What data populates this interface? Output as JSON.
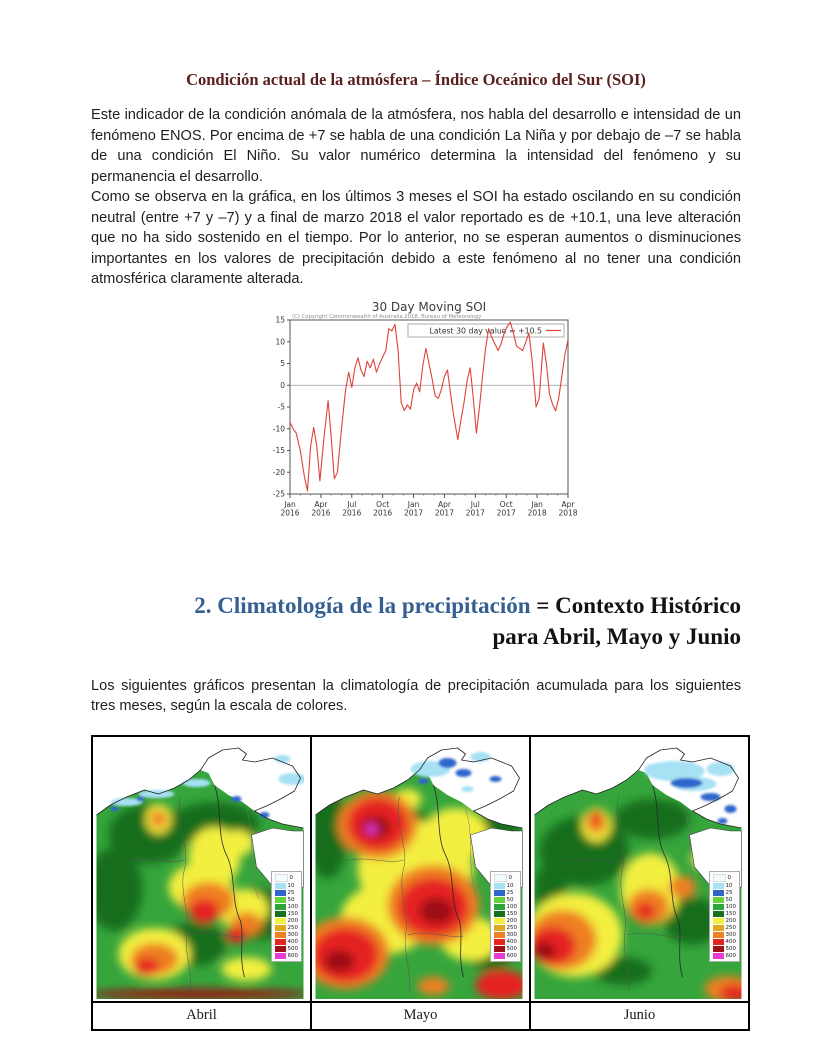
{
  "document": {
    "title": "Condición actual de la atmósfera – Índice Oceánico del Sur (SOI)",
    "title_color": "#5a1f1f",
    "paragraph1": "Este indicador de la condición anómala de la atmósfera, nos habla del desarrollo e intensidad de un fenómeno ENOS. Por encima de +7 se habla de una condición La Niña y por debajo de –7 se habla de una condición El Niño. Su valor numérico determina la intensidad del fenómeno y su permanencia el desarrollo.",
    "paragraph2": "Como se observa en la gráfica, en los últimos 3 meses el SOI ha estado oscilando en su condición neutral (entre +7 y –7) y a final de marzo 2018 el valor reportado es de +10.1, una leve alteración que no ha sido sostenido en el tiempo.  Por lo anterior, no se esperan aumentos o disminuciones importantes en los valores de precipitación debido a este fenómeno al no tener una condición atmosférica claramente alterada.",
    "heading2": {
      "part_blue": "2. Climatología de la precipitación ",
      "part_black": "= Contexto Histórico",
      "line2": "para Abril, Mayo y Junio",
      "blue_color": "#365f91"
    },
    "paragraph3": "Los siguientes gráficos presentan la climatología de precipitación acumulada para los siguientes tres meses, según la escala de colores."
  },
  "chart_data": {
    "type": "line",
    "title": "30 Day Moving SOI",
    "copyright": "(C) Copyright Commonwealth of Australia 2018, Bureau of Meteorology",
    "legend_label": "Latest 30 day value = +10.5",
    "line_color": "#e0423b",
    "ylim": [
      -25,
      15
    ],
    "y_ticks": [
      15,
      10,
      5,
      0,
      -5,
      -10,
      -15,
      -20,
      -25
    ],
    "x_range_months": [
      0,
      27
    ],
    "x_ticks": [
      {
        "month": "Jan",
        "year": "2016",
        "m": 0
      },
      {
        "month": "Apr",
        "year": "2016",
        "m": 3
      },
      {
        "month": "Jul",
        "year": "2016",
        "m": 6
      },
      {
        "month": "Oct",
        "year": "2016",
        "m": 9
      },
      {
        "month": "Jan",
        "year": "2017",
        "m": 12
      },
      {
        "month": "Apr",
        "year": "2017",
        "m": 15
      },
      {
        "month": "Jul",
        "year": "2017",
        "m": 18
      },
      {
        "month": "Oct",
        "year": "2017",
        "m": 21
      },
      {
        "month": "Jan",
        "year": "2018",
        "m": 24
      },
      {
        "month": "Apr",
        "year": "2018",
        "m": 27
      }
    ],
    "series": [
      {
        "name": "30 Day Moving SOI",
        "points": [
          [
            0,
            -8.5
          ],
          [
            0.3,
            -10
          ],
          [
            0.6,
            -11
          ],
          [
            1.0,
            -15
          ],
          [
            1.4,
            -21
          ],
          [
            1.7,
            -24.3
          ],
          [
            2.0,
            -14
          ],
          [
            2.3,
            -9.7
          ],
          [
            2.6,
            -14
          ],
          [
            2.9,
            -22
          ],
          [
            3.3,
            -12
          ],
          [
            3.7,
            -3.5
          ],
          [
            4.0,
            -12
          ],
          [
            4.3,
            -21.5
          ],
          [
            4.6,
            -20
          ],
          [
            5.0,
            -10
          ],
          [
            5.4,
            -1
          ],
          [
            5.7,
            3
          ],
          [
            6.0,
            -0.5
          ],
          [
            6.3,
            4
          ],
          [
            6.6,
            6.3
          ],
          [
            6.9,
            3.5
          ],
          [
            7.2,
            2
          ],
          [
            7.5,
            5.5
          ],
          [
            7.8,
            4
          ],
          [
            8.1,
            6
          ],
          [
            8.4,
            3
          ],
          [
            8.7,
            5
          ],
          [
            9.0,
            6.5
          ],
          [
            9.3,
            8
          ],
          [
            9.6,
            13
          ],
          [
            9.9,
            12.5
          ],
          [
            10.2,
            14
          ],
          [
            10.5,
            8
          ],
          [
            10.8,
            -4
          ],
          [
            11.1,
            -5.8
          ],
          [
            11.4,
            -4.5
          ],
          [
            11.7,
            -5.5
          ],
          [
            12.0,
            -1
          ],
          [
            12.3,
            0.5
          ],
          [
            12.6,
            -1.5
          ],
          [
            12.9,
            4.5
          ],
          [
            13.2,
            8.5
          ],
          [
            13.5,
            5
          ],
          [
            13.8,
            1.5
          ],
          [
            14.1,
            -2.5
          ],
          [
            14.4,
            -3
          ],
          [
            14.7,
            -1
          ],
          [
            15.0,
            2
          ],
          [
            15.3,
            3.5
          ],
          [
            15.6,
            -2
          ],
          [
            15.9,
            -7
          ],
          [
            16.3,
            -12.5
          ],
          [
            16.6,
            -8
          ],
          [
            16.9,
            -4
          ],
          [
            17.2,
            1
          ],
          [
            17.5,
            4
          ],
          [
            17.8,
            -3
          ],
          [
            18.1,
            -11
          ],
          [
            18.4,
            -5
          ],
          [
            18.7,
            2
          ],
          [
            19.0,
            8.5
          ],
          [
            19.3,
            13
          ],
          [
            19.6,
            11
          ],
          [
            19.9,
            9.5
          ],
          [
            20.2,
            8
          ],
          [
            20.5,
            9.5
          ],
          [
            20.8,
            12
          ],
          [
            21.1,
            13.5
          ],
          [
            21.4,
            14.5
          ],
          [
            21.7,
            12
          ],
          [
            22.0,
            9
          ],
          [
            22.3,
            8.5
          ],
          [
            22.6,
            8
          ],
          [
            22.9,
            10
          ],
          [
            23.2,
            12
          ],
          [
            23.5,
            6
          ],
          [
            23.9,
            -5
          ],
          [
            24.2,
            -3
          ],
          [
            24.6,
            9.7
          ],
          [
            24.9,
            5
          ],
          [
            25.2,
            -2
          ],
          [
            25.5,
            -4.4
          ],
          [
            25.8,
            -5.9
          ],
          [
            26.1,
            -3
          ],
          [
            26.4,
            2
          ],
          [
            26.7,
            7
          ],
          [
            27,
            10.5
          ]
        ]
      }
    ]
  },
  "maps": {
    "legend_values": [
      "0",
      "10",
      "25",
      "50",
      "100",
      "150",
      "200",
      "250",
      "300",
      "400",
      "500",
      "600"
    ],
    "legend_colors": {
      "0": "#f2fbfd",
      "10": "#a6e1f4",
      "25": "#2f66cc",
      "50": "#63d43c",
      "100": "#2fa437",
      "150": "#176e1c",
      "200": "#f3ef3f",
      "250": "#dfa821",
      "300": "#ee7f23",
      "400": "#e52420",
      "500": "#9c1016",
      "600": "#e93ad3"
    },
    "land_color": "#36a53c",
    "months": [
      {
        "caption": "Abril",
        "blobs": [
          [
            52,
            95,
            40,
            30,
            "150"
          ],
          [
            18,
            150,
            28,
            42,
            "150"
          ],
          [
            118,
            85,
            45,
            22,
            "150"
          ],
          [
            162,
            175,
            32,
            26,
            "150"
          ],
          [
            98,
            205,
            32,
            22,
            "150"
          ],
          [
            140,
            104,
            18,
            13,
            "200"
          ],
          [
            62,
            80,
            13,
            15,
            "200"
          ],
          [
            62,
            80,
            8,
            9,
            "300"
          ],
          [
            118,
            118,
            26,
            30,
            "200"
          ],
          [
            104,
            148,
            32,
            24,
            "200"
          ],
          [
            146,
            170,
            26,
            20,
            "200"
          ],
          [
            150,
            230,
            25,
            12,
            "200"
          ],
          [
            58,
            215,
            36,
            26,
            "200"
          ],
          [
            112,
            162,
            26,
            19,
            "300"
          ],
          [
            150,
            185,
            16,
            12,
            "300"
          ],
          [
            58,
            220,
            24,
            16,
            "300"
          ],
          [
            108,
            172,
            15,
            12,
            "400"
          ],
          [
            140,
            196,
            10,
            8,
            "400"
          ],
          [
            50,
            228,
            13,
            9,
            "400"
          ],
          [
            103,
            255,
            110,
            5,
            "500"
          ]
        ],
        "sea_blobs": [
          [
            30,
            63,
            16,
            4,
            "10"
          ],
          [
            60,
            55,
            18,
            4,
            "10"
          ],
          [
            100,
            44,
            14,
            4,
            "10"
          ],
          [
            196,
            40,
            14,
            6,
            "10"
          ],
          [
            186,
            20,
            8,
            4,
            "10"
          ],
          [
            18,
            70,
            4,
            2.5,
            "25"
          ],
          [
            44,
            60,
            4,
            2.5,
            "25"
          ],
          [
            140,
            60,
            5,
            3,
            "25"
          ],
          [
            168,
            76,
            5,
            3,
            "25"
          ]
        ]
      },
      {
        "caption": "Mayo",
        "blobs": [
          [
            12,
            95,
            20,
            45,
            "150"
          ],
          [
            182,
            100,
            24,
            28,
            "150"
          ],
          [
            175,
            215,
            22,
            18,
            "150"
          ],
          [
            96,
            88,
            25,
            16,
            "150"
          ],
          [
            100,
            130,
            58,
            48,
            "200"
          ],
          [
            70,
            180,
            45,
            35,
            "200"
          ],
          [
            140,
            95,
            32,
            26,
            "200"
          ],
          [
            155,
            200,
            30,
            22,
            "200"
          ],
          [
            92,
            60,
            14,
            10,
            "200"
          ],
          [
            62,
            86,
            40,
            34,
            "300"
          ],
          [
            118,
            166,
            46,
            40,
            "300"
          ],
          [
            30,
            214,
            44,
            36,
            "300"
          ],
          [
            118,
            247,
            16,
            9,
            "300"
          ],
          [
            62,
            85,
            30,
            26,
            "400"
          ],
          [
            118,
            168,
            35,
            29,
            "400"
          ],
          [
            30,
            216,
            33,
            27,
            "400"
          ],
          [
            186,
            246,
            26,
            15,
            "400"
          ],
          [
            60,
            88,
            15,
            11,
            "500"
          ],
          [
            121,
            172,
            17,
            13,
            "500"
          ],
          [
            24,
            222,
            15,
            11,
            "500"
          ],
          [
            56,
            90,
            6,
            5,
            "600"
          ]
        ],
        "sea_blobs": [
          [
            115,
            30,
            20,
            8,
            "10"
          ],
          [
            165,
            18,
            10,
            5,
            "10"
          ],
          [
            152,
            50,
            6,
            3,
            "10"
          ],
          [
            132,
            24,
            9,
            5,
            "25"
          ],
          [
            148,
            34,
            8,
            4,
            "25"
          ],
          [
            108,
            42,
            5,
            3,
            "25"
          ],
          [
            180,
            40,
            6,
            3,
            "25"
          ]
        ]
      },
      {
        "caption": "Junio",
        "blobs": [
          [
            50,
            112,
            45,
            35,
            "150"
          ],
          [
            118,
            80,
            38,
            20,
            "150"
          ],
          [
            158,
            182,
            28,
            24,
            "150"
          ],
          [
            88,
            232,
            30,
            14,
            "150"
          ],
          [
            16,
            150,
            16,
            26,
            "150"
          ],
          [
            62,
            86,
            15,
            17,
            "200"
          ],
          [
            116,
            150,
            30,
            36,
            "200"
          ],
          [
            40,
            196,
            48,
            42,
            "200"
          ],
          [
            168,
            120,
            12,
            9,
            "200"
          ],
          [
            62,
            83,
            10,
            12,
            "300"
          ],
          [
            148,
            148,
            14,
            11,
            "300"
          ],
          [
            114,
            168,
            21,
            18,
            "300"
          ],
          [
            28,
            201,
            34,
            30,
            "300"
          ],
          [
            194,
            250,
            24,
            13,
            "300"
          ],
          [
            60,
            79,
            5,
            6,
            "400"
          ],
          [
            111,
            172,
            10,
            8,
            "400"
          ],
          [
            18,
            207,
            23,
            19,
            "400"
          ],
          [
            200,
            254,
            15,
            8,
            "400"
          ],
          [
            10,
            212,
            11,
            9,
            "500"
          ]
        ],
        "sea_blobs": [
          [
            140,
            32,
            30,
            10,
            "10"
          ],
          [
            160,
            45,
            22,
            7,
            "10"
          ],
          [
            186,
            30,
            14,
            7,
            "10"
          ],
          [
            120,
            30,
            10,
            5,
            "10"
          ],
          [
            152,
            44,
            16,
            5,
            "25"
          ],
          [
            176,
            58,
            10,
            4,
            "25"
          ],
          [
            196,
            70,
            6,
            4,
            "25"
          ],
          [
            188,
            82,
            5,
            3,
            "25"
          ]
        ]
      }
    ]
  }
}
